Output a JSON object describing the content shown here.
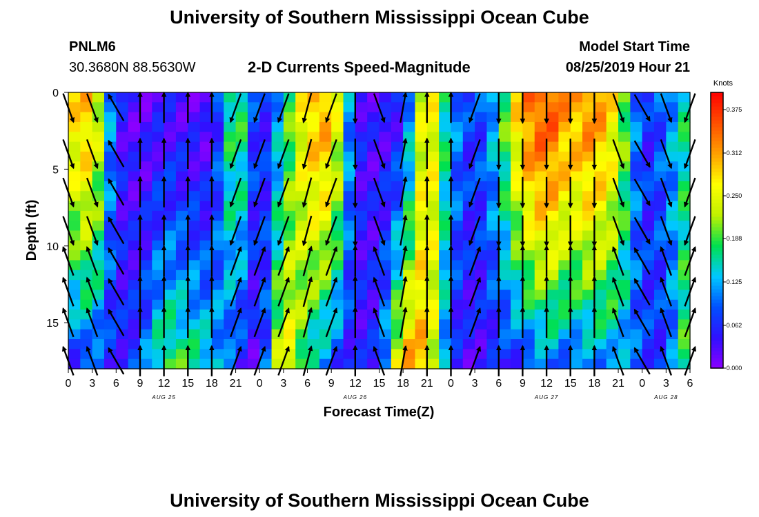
{
  "header": {
    "title": "University of Southern Mississippi Ocean Cube",
    "station_id": "PNLM6",
    "station_coords": "30.3680N 88.5630W",
    "subtitle": "2-D Currents Speed-Magnitude",
    "model_start_label": "Model Start Time",
    "model_start_value": "08/25/2019 Hour 21"
  },
  "footer": {
    "title": "University of Southern Mississippi Ocean Cube"
  },
  "chart_data": {
    "type": "heatmap",
    "title": "2-D Currents Speed-Magnitude",
    "xlabel": "Forecast Time(Z)",
    "ylabel": "Depth (ft)",
    "x_tick_labels": [
      "0",
      "3",
      "6",
      "9",
      "12",
      "15",
      "18",
      "21",
      "0",
      "3",
      "6",
      "9",
      "12",
      "15",
      "18",
      "21",
      "0",
      "3",
      "6",
      "9",
      "12",
      "15",
      "18",
      "21",
      "0",
      "3",
      "6"
    ],
    "date_labels": [
      {
        "label": "AUG 25",
        "hour": 12
      },
      {
        "label": "AUG 26",
        "hour": 36
      },
      {
        "label": "AUG 27",
        "hour": 60
      },
      {
        "label": "AUG 28",
        "hour": 75
      }
    ],
    "xlim_hours": [
      0,
      78
    ],
    "y_ticks": [
      "0",
      "5",
      "10",
      "15"
    ],
    "y_tick_values": [
      0,
      5,
      10,
      15
    ],
    "ylim": [
      0,
      18
    ],
    "y_inverted": true,
    "colorbar": {
      "unit": "Knots",
      "ticks": [
        "0.000",
        "0.062",
        "0.125",
        "0.188",
        "0.250",
        "0.312",
        "0.375"
      ],
      "range": [
        0,
        0.4
      ],
      "colors": [
        "#8a00ff",
        "#3010ff",
        "#0050ff",
        "#00c8ff",
        "#00e050",
        "#c0f000",
        "#ffff00",
        "#ffa000",
        "#ff5000",
        "#ff0000"
      ]
    },
    "columns": [
      {
        "hour": 0,
        "speed": 0.27,
        "bot": 0.05,
        "dir": 160
      },
      {
        "hour": 3,
        "speed": 0.3,
        "bot": 0.08,
        "dir": 160
      },
      {
        "hour": 6,
        "speed": 0.05,
        "bot": 0.05,
        "dir": 330
      },
      {
        "hour": 9,
        "speed": 0.02,
        "bot": 0.08,
        "dir": 0
      },
      {
        "hour": 12,
        "speed": 0.04,
        "bot": 0.2,
        "dir": 0
      },
      {
        "hour": 15,
        "speed": 0.03,
        "bot": 0.18,
        "dir": 0
      },
      {
        "hour": 18,
        "speed": 0.02,
        "bot": 0.15,
        "dir": 0
      },
      {
        "hour": 21,
        "speed": 0.22,
        "bot": 0.06,
        "dir": 200
      },
      {
        "hour": 24,
        "speed": 0.03,
        "bot": 0.02,
        "dir": 200
      },
      {
        "hour": 27,
        "speed": 0.15,
        "bot": 0.3,
        "dir": 200
      },
      {
        "hour": 30,
        "speed": 0.29,
        "bot": 0.15,
        "dir": 195
      },
      {
        "hour": 33,
        "speed": 0.31,
        "bot": 0.08,
        "dir": 200
      },
      {
        "hour": 36,
        "speed": 0.05,
        "bot": 0.04,
        "dir": 180
      },
      {
        "hour": 39,
        "speed": 0.03,
        "bot": 0.06,
        "dir": 160
      },
      {
        "hour": 42,
        "speed": 0.05,
        "bot": 0.32,
        "dir": 10
      },
      {
        "hour": 45,
        "speed": 0.3,
        "bot": 0.3,
        "dir": 0
      },
      {
        "hour": 48,
        "speed": 0.12,
        "bot": 0.05,
        "dir": 0
      },
      {
        "hour": 51,
        "speed": 0.06,
        "bot": 0.03,
        "dir": 200
      },
      {
        "hour": 54,
        "speed": 0.15,
        "bot": 0.05,
        "dir": 180
      },
      {
        "hour": 57,
        "speed": 0.32,
        "bot": 0.06,
        "dir": 180
      },
      {
        "hour": 60,
        "speed": 0.36,
        "bot": 0.1,
        "dir": 180
      },
      {
        "hour": 63,
        "speed": 0.3,
        "bot": 0.08,
        "dir": 180
      },
      {
        "hour": 66,
        "speed": 0.33,
        "bot": 0.1,
        "dir": 180
      },
      {
        "hour": 69,
        "speed": 0.25,
        "bot": 0.12,
        "dir": 160
      },
      {
        "hour": 72,
        "speed": 0.05,
        "bot": 0.08,
        "dir": 150
      },
      {
        "hour": 75,
        "speed": 0.1,
        "bot": 0.06,
        "dir": 160
      },
      {
        "hour": 78,
        "speed": 0.18,
        "bot": 0.22,
        "dir": 200
      }
    ]
  }
}
